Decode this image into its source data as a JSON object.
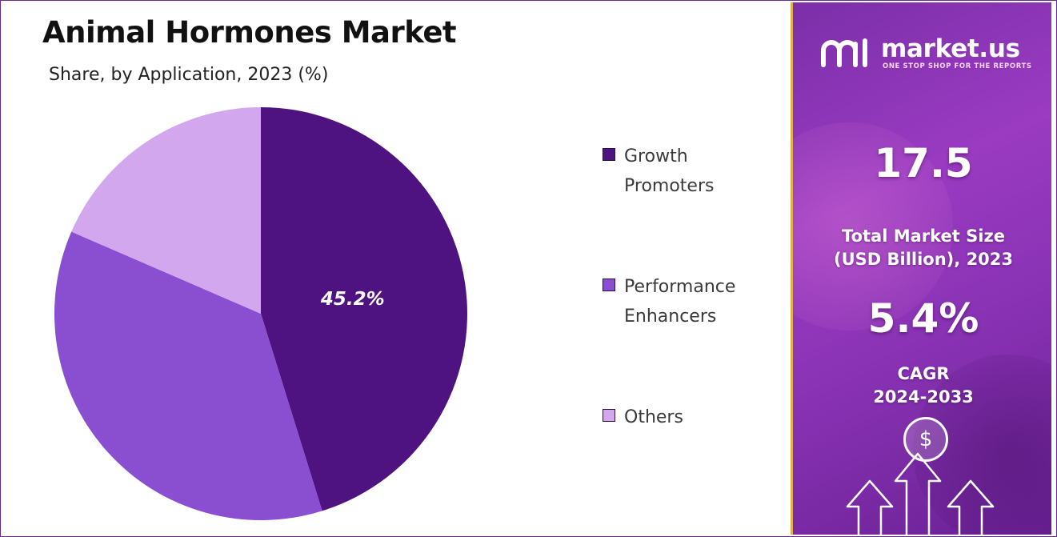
{
  "title": "Animal Hormones Market",
  "subtitle": "Share, by Application, 2023 (%)",
  "chart_data": {
    "type": "pie",
    "title": "Animal Hormones Market",
    "subtitle": "Share, by Application, 2023 (%)",
    "categories": [
      "Growth Promoters",
      "Performance Enhancers",
      "Others"
    ],
    "values": [
      45.2,
      36.3,
      18.5
    ],
    "colors": [
      "#4e1380",
      "#8a4fd1",
      "#d2a7ee"
    ],
    "data_labels": [
      "45.2%",
      "",
      ""
    ],
    "start_angle_deg": 0,
    "direction": "clockwise",
    "legend_position": "right"
  },
  "legend": [
    {
      "label_line1": "Growth",
      "label_line2": "Promoters",
      "color": "#4e1380"
    },
    {
      "label_line1": "Performance",
      "label_line2": "Enhancers",
      "color": "#8a4fd1"
    },
    {
      "label_line1": "Others",
      "label_line2": "",
      "color": "#d2a7ee"
    }
  ],
  "brand": {
    "name": "market.us",
    "tagline": "ONE STOP SHOP FOR THE REPORTS",
    "icon": "market-us-logo-icon"
  },
  "stats": {
    "market_size_value": "17.5",
    "market_size_label_1": "Total Market Size",
    "market_size_label_2": "(USD Billion), 2023",
    "cagr_value": "5.4%",
    "cagr_label_1": "CAGR",
    "cagr_label_2": "2024-2033"
  },
  "decor": {
    "dollar_symbol": "$"
  }
}
